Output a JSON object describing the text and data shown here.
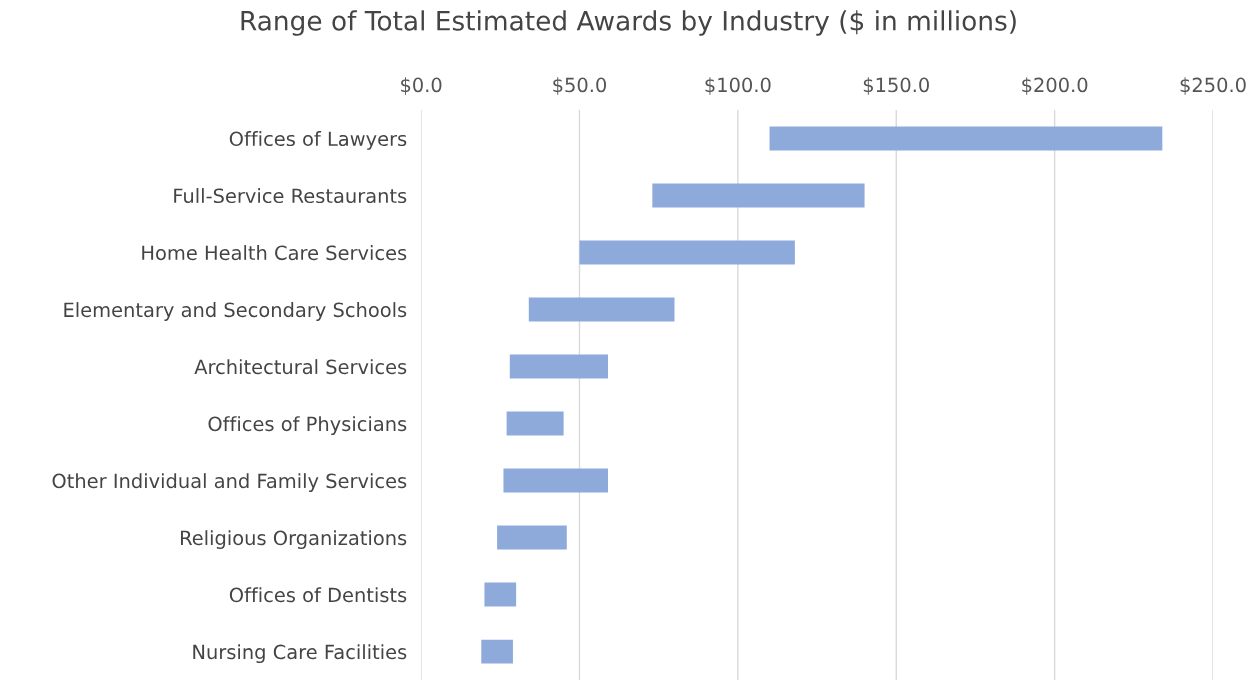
{
  "chart_data": {
    "type": "bar",
    "orientation": "horizontal",
    "title": "Range of Total Estimated Awards by Industry ($ in millions)",
    "categories": [
      "Offices of Lawyers",
      "Full-Service Restaurants",
      "Home Health Care Services",
      "Elementary and Secondary Schools",
      "Architectural Services",
      "Offices of Physicians",
      "Other Individual and Family Services",
      "Religious Organizations",
      "Offices of Dentists",
      "Nursing Care Facilities"
    ],
    "base": [
      110,
      73,
      50,
      34,
      28,
      27,
      26,
      24,
      20,
      19
    ],
    "values": [
      124,
      67,
      68,
      46,
      31,
      18,
      33,
      22,
      10,
      10
    ],
    "color": "#8eaadb",
    "xlim": [
      0,
      250
    ],
    "xticks": [
      {
        "value": 0,
        "label": "$0.0"
      },
      {
        "value": 50,
        "label": "$50.0"
      },
      {
        "value": 100,
        "label": "$100.0"
      },
      {
        "value": 150,
        "label": "$150.0"
      },
      {
        "value": 200,
        "label": "$200.0"
      },
      {
        "value": 250,
        "label": "$250.0"
      }
    ],
    "grid": "x",
    "legend": false
  }
}
